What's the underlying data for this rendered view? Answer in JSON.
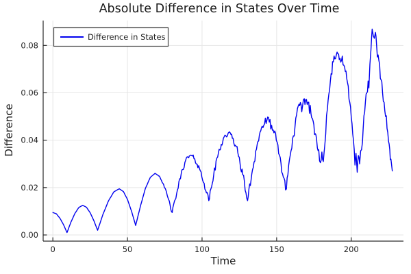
{
  "colors": {
    "background": "#ffffff",
    "series": "#0000ee",
    "grid": "#e6e6e6",
    "axis": "#2b2b2b",
    "text": "#1e1e1e",
    "legend_border": "#414141",
    "legend_fill": "#ffffff"
  },
  "chart_data": {
    "type": "line",
    "title": "Absolute Difference in States Over Time",
    "xlabel": "Time",
    "ylabel": "Difference",
    "xlim": [
      -6.5,
      235
    ],
    "ylim": [
      -0.0026,
      0.0905
    ],
    "grid": true,
    "legend": {
      "position": "top-left",
      "label": "Difference in States"
    },
    "xticks": [
      {
        "v": 0,
        "label": "0"
      },
      {
        "v": 50,
        "label": "50"
      },
      {
        "v": 100,
        "label": "100"
      },
      {
        "v": 150,
        "label": "150"
      },
      {
        "v": 200,
        "label": "200"
      }
    ],
    "yticks": [
      {
        "v": 0.0,
        "label": "0.00"
      },
      {
        "v": 0.02,
        "label": "0.02"
      },
      {
        "v": 0.04,
        "label": "0.04"
      },
      {
        "v": 0.06,
        "label": "0.06"
      },
      {
        "v": 0.08,
        "label": "0.08"
      }
    ],
    "series": [
      {
        "name": "Difference in States",
        "color": "#0000ee",
        "anchors": [
          [
            0,
            0.0095
          ],
          [
            2.4,
            0.0089
          ],
          [
            4.8,
            0.007
          ],
          [
            7.2,
            0.0043
          ],
          [
            9.5,
            0.001
          ],
          [
            12.1,
            0.0054
          ],
          [
            14.8,
            0.0091
          ],
          [
            17.4,
            0.0116
          ],
          [
            20,
            0.0125
          ],
          [
            22.5,
            0.0117
          ],
          [
            25,
            0.0094
          ],
          [
            27.5,
            0.006
          ],
          [
            30,
            0.002
          ],
          [
            33.6,
            0.0087
          ],
          [
            37.3,
            0.0144
          ],
          [
            40.9,
            0.0182
          ],
          [
            44.5,
            0.0195
          ],
          [
            47.3,
            0.0183
          ],
          [
            50,
            0.015
          ],
          [
            52.8,
            0.0099
          ],
          [
            55.5,
            0.004
          ],
          [
            58.8,
            0.0124
          ],
          [
            62,
            0.0196
          ],
          [
            65.3,
            0.0243
          ],
          [
            68.5,
            0.026
          ],
          [
            71.4,
            0.0248
          ],
          [
            74.3,
            0.0212
          ],
          [
            77.1,
            0.0158
          ],
          [
            80,
            0.0095
          ],
          [
            83,
            0.0175
          ],
          [
            86,
            0.0258
          ],
          [
            89,
            0.0315
          ],
          [
            92,
            0.0335
          ],
          [
            95.1,
            0.0321
          ],
          [
            98.3,
            0.0279
          ],
          [
            101.4,
            0.0218
          ],
          [
            104.5,
            0.0145
          ],
          [
            107.8,
            0.0254
          ],
          [
            111,
            0.0347
          ],
          [
            114.3,
            0.0408
          ],
          [
            117.5,
            0.043
          ],
          [
            120.8,
            0.0408
          ],
          [
            124,
            0.0347
          ],
          [
            127.3,
            0.0254
          ],
          [
            130.5,
            0.0145
          ],
          [
            133.8,
            0.0275
          ],
          [
            137,
            0.0385
          ],
          [
            140.3,
            0.0459
          ],
          [
            143.5,
            0.0485
          ],
          [
            146.6,
            0.0463
          ],
          [
            149.8,
            0.0399
          ],
          [
            152.9,
            0.0303
          ],
          [
            156,
            0.019
          ],
          [
            159.1,
            0.0336
          ],
          [
            162.3,
            0.0459
          ],
          [
            165,
            0.0552
          ],
          [
            166.8,
            0.052
          ],
          [
            168.5,
            0.0575
          ],
          [
            171,
            0.056
          ],
          [
            174,
            0.0491
          ],
          [
            176.8,
            0.0403
          ],
          [
            178.2,
            0.036
          ],
          [
            179.3,
            0.0305
          ],
          [
            180.3,
            0.035
          ],
          [
            181.3,
            0.031
          ],
          [
            182.3,
            0.038
          ],
          [
            184,
            0.053
          ],
          [
            186,
            0.065
          ],
          [
            188,
            0.073
          ],
          [
            189.5,
            0.0745
          ],
          [
            191,
            0.0765
          ],
          [
            192.5,
            0.0745
          ],
          [
            194,
            0.0755
          ],
          [
            195.5,
            0.071
          ],
          [
            197,
            0.066
          ],
          [
            199,
            0.056
          ],
          [
            200.5,
            0.047
          ],
          [
            201.5,
            0.04
          ],
          [
            202.5,
            0.0295
          ],
          [
            203.2,
            0.0345
          ],
          [
            204,
            0.0265
          ],
          [
            204.8,
            0.0335
          ],
          [
            205.6,
            0.03
          ],
          [
            206.3,
            0.0355
          ],
          [
            207.5,
            0.039
          ],
          [
            209,
            0.052
          ],
          [
            210.5,
            0.06
          ],
          [
            211.3,
            0.065
          ],
          [
            211.8,
            0.062
          ],
          [
            212.5,
            0.072
          ],
          [
            213.2,
            0.078
          ],
          [
            214,
            0.0869
          ],
          [
            214.8,
            0.084
          ],
          [
            215.5,
            0.083
          ],
          [
            216.2,
            0.0855
          ],
          [
            217,
            0.08
          ],
          [
            218,
            0.076
          ],
          [
            219,
            0.072
          ],
          [
            220,
            0.0655
          ],
          [
            221,
            0.06
          ],
          [
            222,
            0.056
          ],
          [
            223,
            0.05
          ],
          [
            224,
            0.045
          ],
          [
            225,
            0.0395
          ],
          [
            225.8,
            0.036
          ],
          [
            226.6,
            0.032
          ],
          [
            227.5,
            0.027
          ]
        ],
        "noise": {
          "seed": 42,
          "step": 0.5,
          "start_t": 70,
          "amplitude_schedule": [
            [
              70,
              0.0
            ],
            [
              80,
              0.001
            ],
            [
              110,
              0.0014
            ],
            [
              140,
              0.0019
            ],
            [
              170,
              0.0024
            ],
            [
              200,
              0.0028
            ],
            [
              228,
              0.003
            ]
          ]
        }
      }
    ]
  }
}
